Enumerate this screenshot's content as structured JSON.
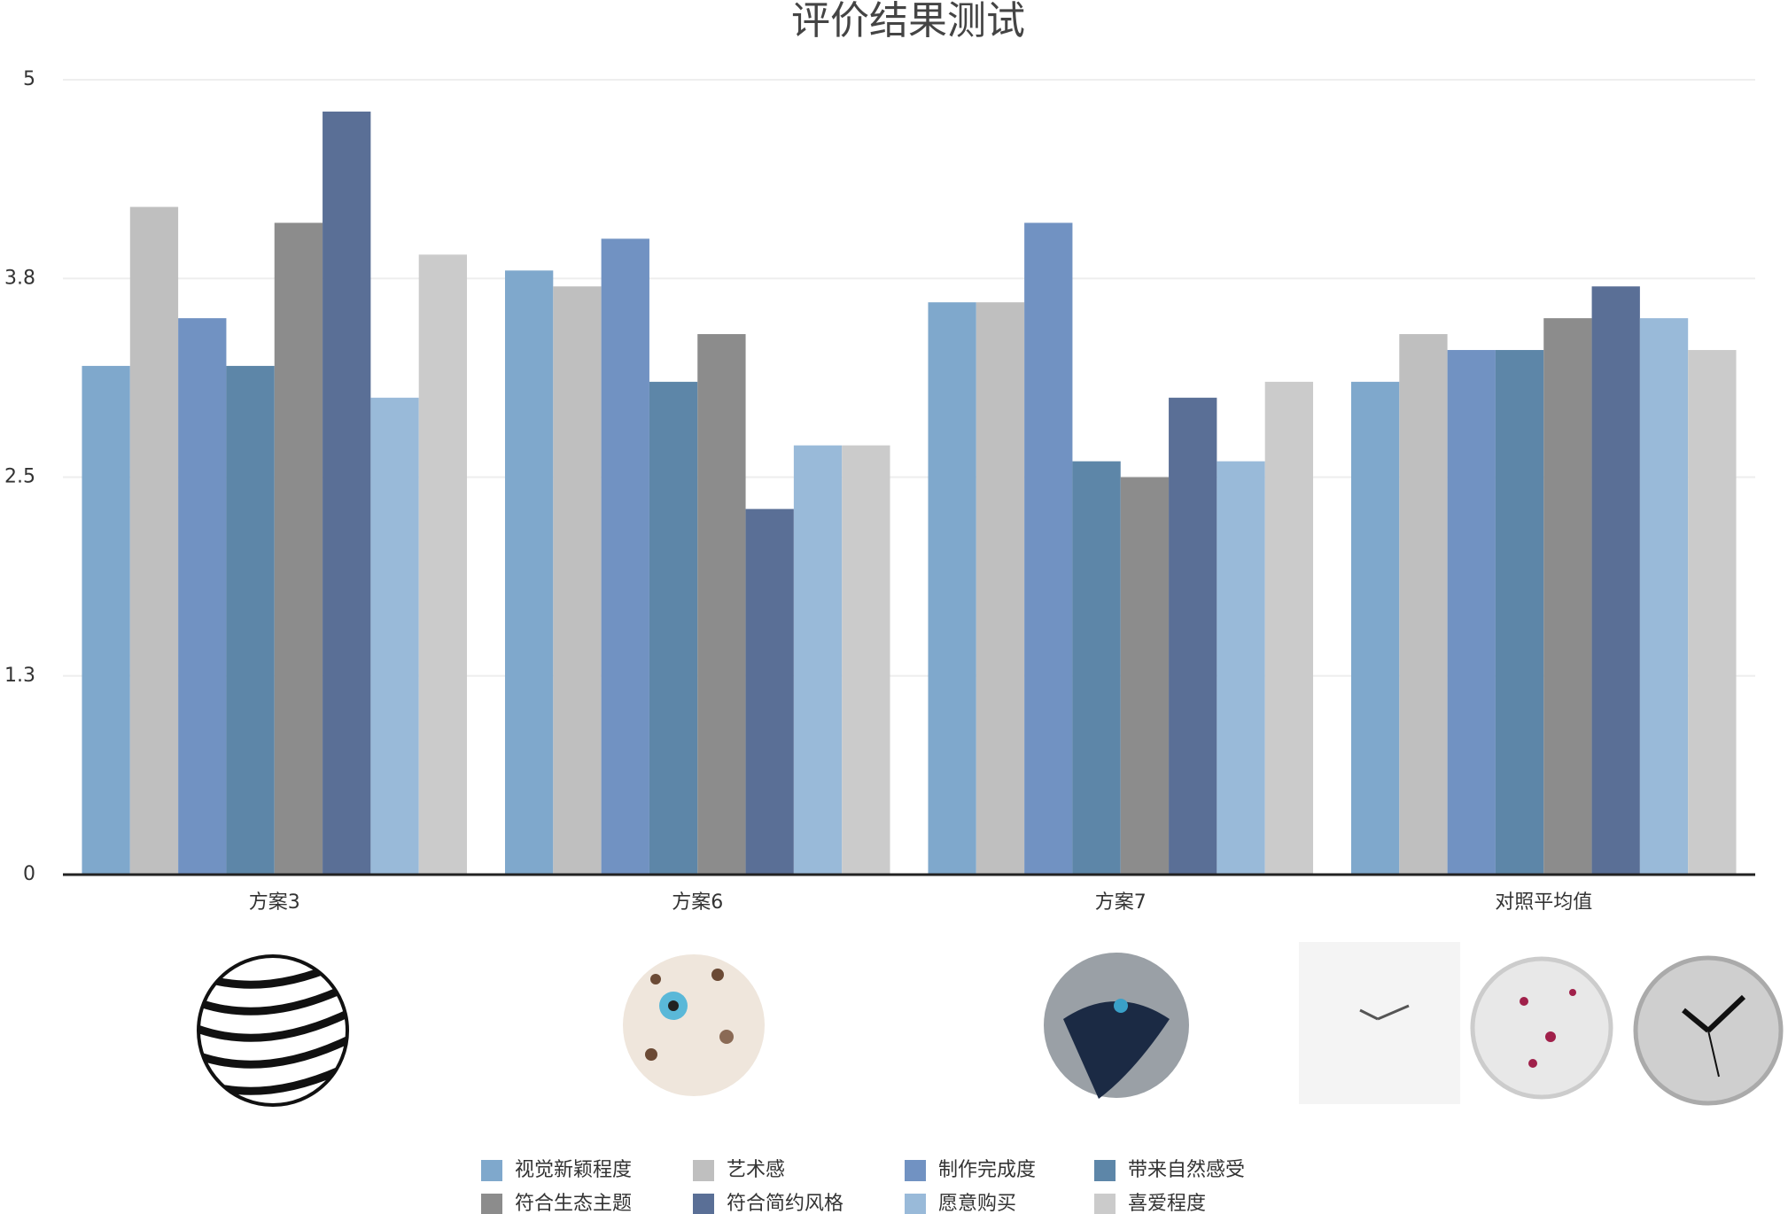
{
  "chart_data": {
    "type": "bar",
    "title": "评价结果测试",
    "categories": [
      "方案3",
      "方案6",
      "方案7",
      "对照平均值"
    ],
    "series": [
      {
        "name": "视觉新颖程度",
        "color": "#7fa8cc",
        "values": [
          3.2,
          3.8,
          3.6,
          3.1
        ]
      },
      {
        "name": "艺术感",
        "color": "#bfbfbf",
        "values": [
          4.2,
          3.7,
          3.6,
          3.4
        ]
      },
      {
        "name": "制作完成度",
        "color": "#7192c2",
        "values": [
          3.5,
          4.0,
          4.1,
          3.3
        ]
      },
      {
        "name": "带来自然感受",
        "color": "#5d86a8",
        "values": [
          3.2,
          3.1,
          2.6,
          3.3
        ]
      },
      {
        "name": "符合生态主题",
        "color": "#8c8c8c",
        "values": [
          4.1,
          3.4,
          2.5,
          3.5
        ]
      },
      {
        "name": "符合简约风格",
        "color": "#5a6f96",
        "values": [
          4.8,
          2.3,
          3.0,
          3.7
        ]
      },
      {
        "name": "愿意购买",
        "color": "#99bad9",
        "values": [
          3.0,
          2.7,
          2.6,
          3.5
        ]
      },
      {
        "name": "喜爱程度",
        "color": "#cbcbcb",
        "values": [
          3.9,
          2.7,
          3.1,
          3.3
        ]
      }
    ],
    "ylim": [
      0,
      5
    ],
    "yticks": [
      0,
      {
        "value": 1.25,
        "label": "1.3"
      },
      2.5,
      {
        "value": 3.75,
        "label": "3.8"
      },
      5
    ],
    "grid": true,
    "legend": "bottom"
  }
}
